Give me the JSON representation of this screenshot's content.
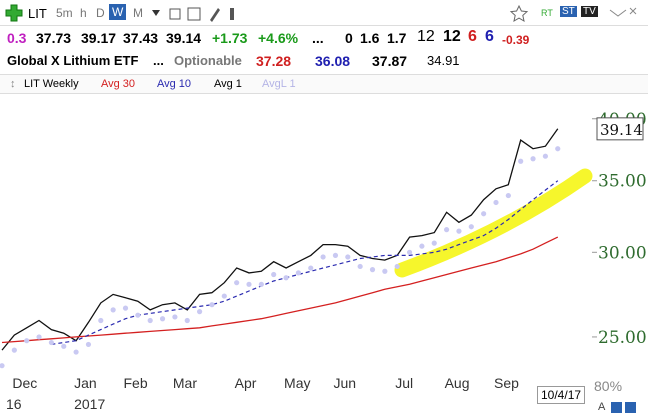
{
  "toolbar": {
    "symbol": "LIT",
    "timeframes": [
      "5m",
      "h",
      "D",
      "W",
      "M"
    ],
    "badges": [
      "RT",
      "ST",
      "TV"
    ]
  },
  "quote": {
    "change_small": "0.3",
    "open": "37.73",
    "high": "39.17",
    "low": "37.43",
    "close": "39.14",
    "change": "+1.73",
    "change_pct": "+4.6%",
    "dots": "...",
    "v1": "0",
    "v2": "1.6",
    "v3": "1.7",
    "v4": "12",
    "v5": "12",
    "v6": "6",
    "v7": "6",
    "v8": "-0.39"
  },
  "info": {
    "name": "Global X Lithium ETF",
    "dots": "...",
    "optionable": "Optionable",
    "avg30": "37.28",
    "avg10": "36.08",
    "avg1": "37.87",
    "avgl1": "34.91"
  },
  "footer": {
    "date": "10/4/17",
    "zoom": "80%",
    "scale": "A"
  },
  "chart_data": {
    "type": "line",
    "title": "LIT Weekly",
    "log_scale": true,
    "categories": [
      null,
      "Dec",
      null,
      null,
      null,
      null,
      "Jan",
      null,
      null,
      null,
      "Feb",
      null,
      null,
      null,
      "Mar",
      null,
      null,
      null,
      null,
      "Apr",
      null,
      null,
      null,
      "May",
      null,
      null,
      null,
      "Jun",
      null,
      null,
      null,
      null,
      "Jul",
      null,
      null,
      null,
      "Aug",
      null,
      null,
      null,
      "Sep",
      null,
      null,
      null,
      null,
      null
    ],
    "year_labels": [
      {
        "at": 0,
        "label": "16"
      },
      {
        "at": 6,
        "label": "2017"
      }
    ],
    "ylim": [
      22.3,
      42.1
    ],
    "yticks": [
      {
        "value": 25,
        "label": "25.00"
      },
      {
        "value": 30,
        "label": "30.00"
      },
      {
        "value": 35,
        "label": "35.00"
      },
      {
        "value": 40,
        "label": "40.00"
      }
    ],
    "series": [
      {
        "name": "Avg 1",
        "color": "#111111",
        "style": "solid",
        "values": [
          24.3,
          25.1,
          25.5,
          25.9,
          25.4,
          25.2,
          24.8,
          25.8,
          26.9,
          27.4,
          27.2,
          27.0,
          26.5,
          26.8,
          26.9,
          26.5,
          27.4,
          27.5,
          28.1,
          29.0,
          28.7,
          28.8,
          29.4,
          29.0,
          29.4,
          29.8,
          30.5,
          30.5,
          30.4,
          29.8,
          29.6,
          29.5,
          29.8,
          31.0,
          31.1,
          31.3,
          32.7,
          32.0,
          32.5,
          33.6,
          34.4,
          34.7,
          38.2,
          37.5,
          37.7,
          39.14
        ]
      },
      {
        "name": "Avg 30",
        "color": "#d42020",
        "style": "solid",
        "values": [
          24.7,
          24.75,
          24.8,
          24.85,
          24.9,
          24.95,
          25.0,
          25.05,
          25.1,
          25.15,
          25.2,
          25.25,
          25.3,
          25.35,
          25.4,
          25.45,
          25.5,
          25.6,
          25.7,
          25.8,
          25.9,
          26.0,
          26.15,
          26.3,
          26.45,
          26.6,
          26.75,
          26.9,
          27.1,
          27.3,
          27.5,
          27.7,
          27.85,
          28.0,
          28.2,
          28.4,
          28.6,
          28.8,
          29.0,
          29.2,
          29.4,
          29.65,
          29.9,
          30.2,
          30.6,
          31.0
        ]
      },
      {
        "name": "Avg 10",
        "color": "#2a2ab0",
        "style": "dashed",
        "values": [
          null,
          null,
          null,
          null,
          24.6,
          24.7,
          24.8,
          25.1,
          25.4,
          25.7,
          26.0,
          26.2,
          26.3,
          26.4,
          26.5,
          26.6,
          26.7,
          26.8,
          27.0,
          27.3,
          27.6,
          27.9,
          28.2,
          28.4,
          28.6,
          28.8,
          29.0,
          29.2,
          29.4,
          29.6,
          29.7,
          29.8,
          29.8,
          29.8,
          29.9,
          30.0,
          30.2,
          30.5,
          30.8,
          31.1,
          31.6,
          32.2,
          32.9,
          33.6,
          34.3,
          35.0
        ]
      },
      {
        "name": "AvgL 1",
        "color": "#c9c9f2",
        "style": "dots",
        "values": [
          23.5,
          24.3,
          24.8,
          25.0,
          24.7,
          24.5,
          24.2,
          24.6,
          25.9,
          26.5,
          26.6,
          26.2,
          25.9,
          26.0,
          26.1,
          25.9,
          26.4,
          26.8,
          27.3,
          28.1,
          28.0,
          28.0,
          28.6,
          28.4,
          28.7,
          29.0,
          29.7,
          29.8,
          29.7,
          29.1,
          28.9,
          28.8,
          29.1,
          30.0,
          30.4,
          30.6,
          31.5,
          31.4,
          31.7,
          32.6,
          33.4,
          33.9,
          36.5,
          36.7,
          36.9,
          37.5
        ]
      }
    ]
  }
}
